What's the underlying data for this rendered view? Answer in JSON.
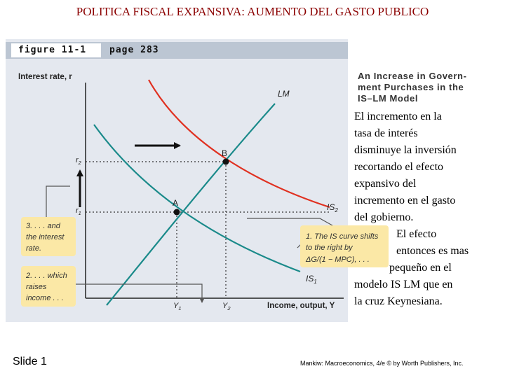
{
  "slide": {
    "title": "POLITICA FISCAL EXPANSIVA: AUMENTO DEL GASTO PUBLICO",
    "slide_number": "Slide 1",
    "credit": "Mankiw: Macroeconomics, 4/e © by Worth Publishers, Inc."
  },
  "figure": {
    "tab_label": "figure 11-1",
    "page_label": "page 283",
    "caption": "An Increase in Govern-\nment Purchases in the\nIS–LM Model",
    "y_axis_label": "Interest rate, r",
    "x_axis_label": "Income, output, Y",
    "curve_labels": {
      "lm": "LM",
      "is1": "IS",
      "is1_sub": "1",
      "is2": "IS",
      "is2_sub": "2"
    },
    "points": {
      "a": "A",
      "b": "B"
    },
    "ticks": {
      "r1": "r",
      "r1_sub": "1",
      "r2": "r",
      "r2_sub": "2",
      "y1": "Y",
      "y1_sub": "1",
      "y2": "Y",
      "y2_sub": "2"
    },
    "annotations": {
      "box1": [
        "1. The IS curve shifts",
        "to the right by",
        "ΔG/(1 − MPC), . . ."
      ],
      "box2": [
        "2. . . . which",
        "raises",
        "income . . ."
      ],
      "box3": [
        "3. . . . and",
        "the interest",
        "rate."
      ]
    },
    "colors": {
      "lm": "#1a8a8a",
      "is1": "#1a8a8a",
      "is2": "#e03020",
      "box": "#fbe8a6",
      "panel": "#e4e8ef"
    }
  },
  "note_lines": [
    "El incremento en la",
    "tasa de interés",
    "disminuye la inversión",
    "recortando el efecto",
    "expansivo del",
    "incremento en el gasto",
    "del gobierno.",
    "El efecto",
    "entonces es mas",
    "pequeño en el",
    "modelo IS LM que en",
    "la cruz Keynesiana."
  ]
}
